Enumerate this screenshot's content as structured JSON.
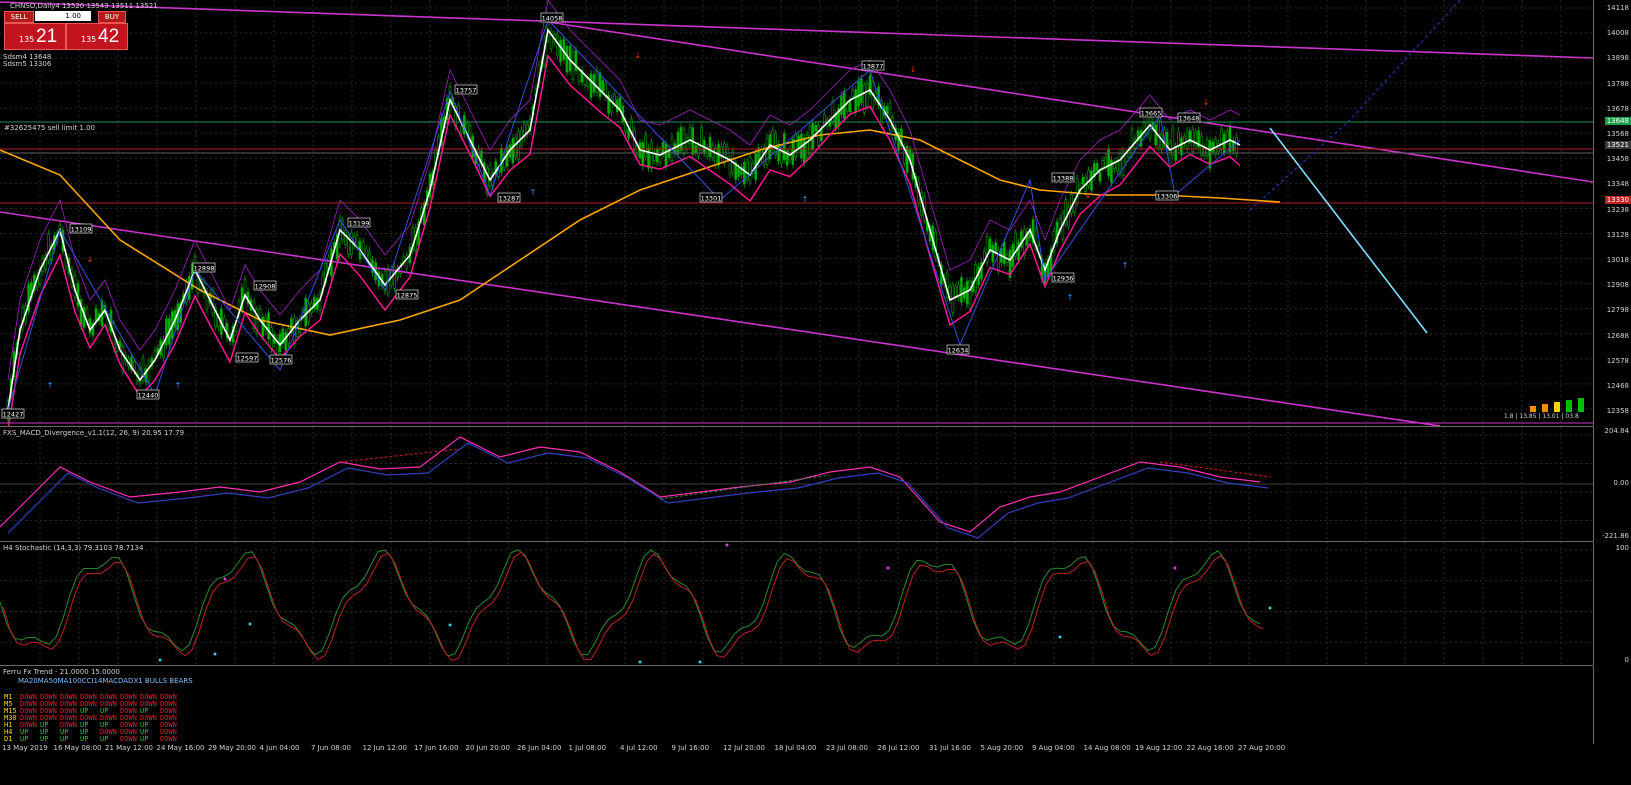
{
  "main": {
    "symbol_line": "CHNSO,Daily4  13520 13543 13511 13521",
    "sdsm_line": "Sdsm4 13648",
    "sdsm_line2": "Sdsm5 13306",
    "order_label": "#32625475 sell limit 1.00",
    "price_ticks": [
      "14118",
      "14008",
      "13898",
      "13788",
      "13678",
      "13568",
      "13458",
      "13348",
      "13238",
      "13128",
      "13018",
      "12908",
      "12798",
      "12688",
      "12578",
      "12468",
      "12358"
    ],
    "current_price_a": "13648",
    "current_price_b": "13521",
    "current_price_c": "13330",
    "zigzag_labels": [
      "14058",
      "13877",
      "13757",
      "13665",
      "13648",
      "13287",
      "13301",
      "13388",
      "13306",
      "13199",
      "13109",
      "12936",
      "12908",
      "12898",
      "12875",
      "12597",
      "12576",
      "12440",
      "12634",
      "12427"
    ],
    "small_box_text": "1.8 | 13.85 | 13.01 | 03.8"
  },
  "trade_panel": {
    "sell_label": "SELL",
    "buy_label": "BUY",
    "lot": "1.00",
    "sell_small": "135",
    "sell_big": "21",
    "buy_small": "135",
    "buy_big": "42"
  },
  "macd": {
    "title": "FXS_MACD_Divergence_v1.1(12, 26, 9) 20.95 17.79",
    "top": "204.84",
    "mid": "0.00",
    "bottom": "-221.86"
  },
  "stoch": {
    "title": "H4 Stochastic (14,3,3) 79.3103 78.7134",
    "top": "100",
    "bottom": "0"
  },
  "trend": {
    "title": "Ferru Fx Trend - 21.0000 15.0000",
    "header": "MA20MA50MA100CCI14MACDADX1 BULLS BEARS",
    "rows": [
      {
        "tf": "M1",
        "vals": "DOWN DOWN DOWN DOWN DOWN DOWN DOWN DOWN"
      },
      {
        "tf": "M5",
        "vals": "DOWN DOWN DOWN DOWN DOWN DOWN DOWN DOWN"
      },
      {
        "tf": "M15",
        "vals": "DOWN DOWN DOWN UP UP DOWN UP DOWN"
      },
      {
        "tf": "M30",
        "vals": "DOWN DOWN DOWN DOWN DOWN DOWN DOWN DOWN"
      },
      {
        "tf": "H1",
        "vals": "DOWN UP DOWN UP UP DOWN UP DOWN"
      },
      {
        "tf": "H4",
        "vals": "UP UP UP UP DOWN DOWN UP DOWN"
      },
      {
        "tf": "D1",
        "vals": "UP UP UP UP UP DOWN UP DOWN"
      }
    ]
  },
  "xaxis": [
    "13 May 2019",
    "16 May 08:00",
    "21 May 12:00",
    "24 May 16:00",
    "29 May 20:00",
    "4 Jun 04:00",
    "7 Jun 08:00",
    "12 Jun 12:00",
    "17 Jun 16:00",
    "20 Jun 20:00",
    "26 Jun 04:00",
    "1 Jul 08:00",
    "4 Jul 12:00",
    "9 Jul 16:00",
    "12 Jul 20:00",
    "18 Jul 04:00",
    "23 Jul 08:00",
    "26 Jul 12:00",
    "31 Jul 16:00",
    "5 Aug 20:00",
    "9 Aug 04:00",
    "14 Aug 08:00",
    "19 Aug 12:00",
    "22 Aug 16:00",
    "27 Aug 20:00"
  ],
  "colors": {
    "background": "#000000",
    "white_line": "#ffffff",
    "pink_ma": "#ff1493",
    "orange_ma": "#ffa500",
    "channel": "#cc33cc",
    "cyan_line": "#7fdfff",
    "candles": "#00a000"
  }
}
